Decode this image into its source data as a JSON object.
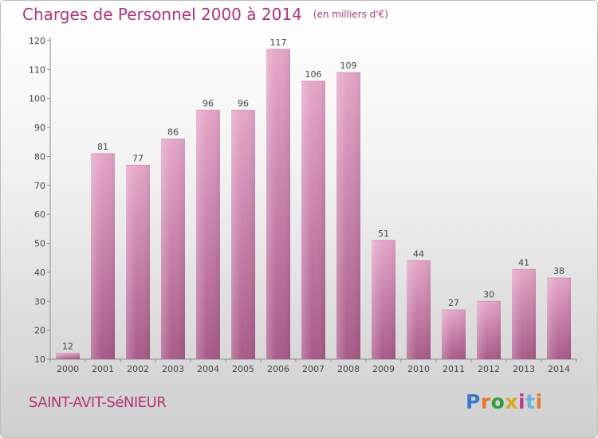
{
  "title": "Charges de Personnel 2000 à 2014",
  "subtitle": "(en milliers d'€)",
  "commune": "SAINT-AVIT-SéNIEUR",
  "logo": {
    "text": "Proxiti",
    "letters": [
      "P",
      "r",
      "o",
      "x",
      "i",
      "t",
      "i"
    ]
  },
  "colors": {
    "bar": "#cf7eac",
    "bar_light": "#e5a6c9",
    "bar_dark": "#a85a88",
    "accent": "#b0357a"
  },
  "chart_data": {
    "type": "bar",
    "categories": [
      "2000",
      "2001",
      "2002",
      "2003",
      "2004",
      "2005",
      "2006",
      "2007",
      "2008",
      "2009",
      "2010",
      "2011",
      "2012",
      "2013",
      "2014"
    ],
    "values": [
      12,
      81,
      77,
      86,
      96,
      96,
      117,
      106,
      109,
      51,
      44,
      27,
      30,
      41,
      38
    ],
    "title": "Charges de Personnel 2000 à 2014",
    "ylim": [
      10,
      120
    ],
    "yticks": [
      10,
      20,
      30,
      40,
      50,
      60,
      70,
      80,
      90,
      100,
      110,
      120
    ],
    "grid": false,
    "legend": "none"
  }
}
